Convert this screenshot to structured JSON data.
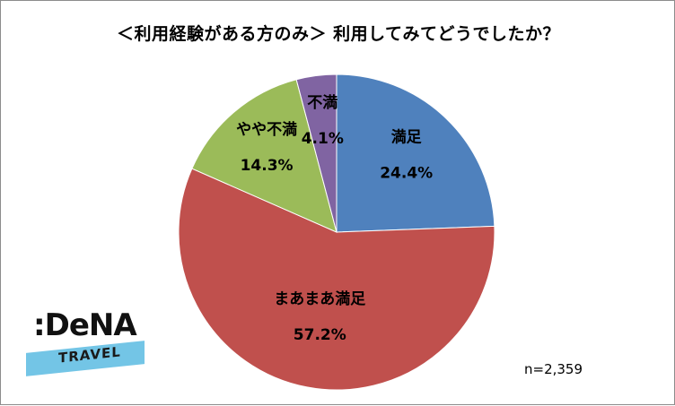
{
  "title": "＜利用経験がある方のみ＞ 利用してみてどうでしたか？",
  "sample_size": "n=2,359",
  "logo": {
    "main": ":DeNA",
    "sub": "TRAVEL"
  },
  "chart_data": {
    "type": "pie",
    "title": "＜利用経験がある方のみ＞ 利用してみてどうでしたか？",
    "start_angle_deg": 0,
    "direction": "clockwise",
    "slices": [
      {
        "label": "満足",
        "value": 24.4,
        "value_label": "24.4%",
        "color": "#4f81bd"
      },
      {
        "label": "まあまあ満足",
        "value": 57.2,
        "value_label": "57.2%",
        "color": "#c0504d"
      },
      {
        "label": "やや不満",
        "value": 14.3,
        "value_label": "14.3%",
        "color": "#9bbb59"
      },
      {
        "label": "不満",
        "value": 4.1,
        "value_label": "4.1%",
        "color": "#8064a2"
      }
    ]
  }
}
